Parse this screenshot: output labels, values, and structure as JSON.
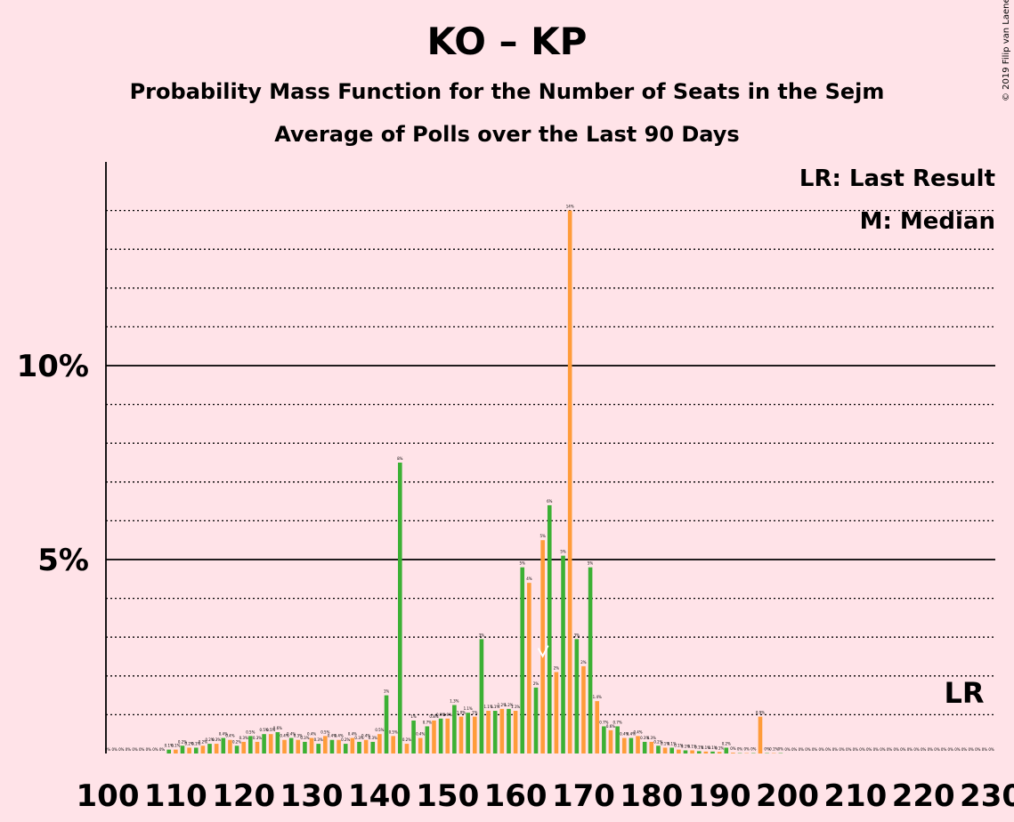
{
  "header": {
    "title": "KO – KP",
    "subtitle": "Probability Mass Function for the Number of Seats in the Sejm",
    "subtitle2": "Average of Polls over the Last 90 Days",
    "copyright": "© 2019 Filip van Laenen"
  },
  "legend": {
    "lr": "LR: Last Result",
    "m": "M: Median"
  },
  "colors": {
    "background": "#FFE3E8",
    "green": "#3CB034",
    "orange": "#FF9C3A",
    "text": "#000000"
  },
  "chart_data": {
    "type": "bar",
    "ylim": [
      0,
      15
    ],
    "y_ticks": [
      {
        "value": 5,
        "label": "5%"
      },
      {
        "value": 10,
        "label": "10%"
      }
    ],
    "x_ticks": [
      100,
      110,
      120,
      130,
      140,
      150,
      160,
      170,
      180,
      190,
      200,
      210,
      220,
      230
    ],
    "last_result_seat": 226,
    "last_result_label": "LR",
    "median_seat": 164,
    "median_label": "M",
    "bars": [
      {
        "seat": 100,
        "value": 0,
        "label": "0%"
      },
      {
        "seat": 101,
        "value": 0,
        "label": "0%"
      },
      {
        "seat": 102,
        "value": 0,
        "label": "0%"
      },
      {
        "seat": 103,
        "value": 0,
        "label": "0%"
      },
      {
        "seat": 104,
        "value": 0,
        "label": "0%"
      },
      {
        "seat": 105,
        "value": 0,
        "label": "0%"
      },
      {
        "seat": 106,
        "value": 0,
        "label": "0%"
      },
      {
        "seat": 107,
        "value": 0,
        "label": "0%"
      },
      {
        "seat": 108,
        "value": 0,
        "label": "0%"
      },
      {
        "seat": 109,
        "value": 0.1,
        "label": "0.1%"
      },
      {
        "seat": 110,
        "value": 0.1,
        "label": "0.1%"
      },
      {
        "seat": 111,
        "value": 0.2,
        "label": "0.2%"
      },
      {
        "seat": 112,
        "value": 0.15,
        "label": "0.2%"
      },
      {
        "seat": 113,
        "value": 0.15,
        "label": "0.1%"
      },
      {
        "seat": 114,
        "value": 0.2,
        "label": "0.2%"
      },
      {
        "seat": 115,
        "value": 0.25,
        "label": "0.2%"
      },
      {
        "seat": 116,
        "value": 0.25,
        "label": "0.3%"
      },
      {
        "seat": 117,
        "value": 0.4,
        "label": "0.4%"
      },
      {
        "seat": 118,
        "value": 0.35,
        "label": "0.4%"
      },
      {
        "seat": 119,
        "value": 0.2,
        "label": "0.2%"
      },
      {
        "seat": 120,
        "value": 0.3,
        "label": "0.3%"
      },
      {
        "seat": 121,
        "value": 0.45,
        "label": "0.5%"
      },
      {
        "seat": 122,
        "value": 0.3,
        "label": "0.3%"
      },
      {
        "seat": 123,
        "value": 0.5,
        "label": "0.5%"
      },
      {
        "seat": 124,
        "value": 0.5,
        "label": "0.5%"
      },
      {
        "seat": 125,
        "value": 0.55,
        "label": "0.6%"
      },
      {
        "seat": 126,
        "value": 0.35,
        "label": "0.4%"
      },
      {
        "seat": 127,
        "value": 0.4,
        "label": "0.4%"
      },
      {
        "seat": 128,
        "value": 0.35,
        "label": "0.3%"
      },
      {
        "seat": 129,
        "value": 0.3,
        "label": "0.3%"
      },
      {
        "seat": 130,
        "value": 0.4,
        "label": "0.4%"
      },
      {
        "seat": 131,
        "value": 0.25,
        "label": "0.3%"
      },
      {
        "seat": 132,
        "value": 0.45,
        "label": "0.5%"
      },
      {
        "seat": 133,
        "value": 0.35,
        "label": "0.4%"
      },
      {
        "seat": 134,
        "value": 0.35,
        "label": "0.4%"
      },
      {
        "seat": 135,
        "value": 0.25,
        "label": "0.2%"
      },
      {
        "seat": 136,
        "value": 0.4,
        "label": "0.4%"
      },
      {
        "seat": 137,
        "value": 0.3,
        "label": "0.3%"
      },
      {
        "seat": 138,
        "value": 0.35,
        "label": "0.4%"
      },
      {
        "seat": 139,
        "value": 0.3,
        "label": "0.3%"
      },
      {
        "seat": 140,
        "value": 0.5,
        "label": "0.5%"
      },
      {
        "seat": 141,
        "value": 1.5,
        "label": "1%"
      },
      {
        "seat": 142,
        "value": 0.45,
        "label": "0.5%"
      },
      {
        "seat": 143,
        "value": 7.5,
        "label": "8%"
      },
      {
        "seat": 144,
        "value": 0.25,
        "label": "0.2%"
      },
      {
        "seat": 145,
        "value": 0.85,
        "label": "1%"
      },
      {
        "seat": 146,
        "value": 0.4,
        "label": "0.4%"
      },
      {
        "seat": 147,
        "value": 0.7,
        "label": "0.7%"
      },
      {
        "seat": 148,
        "value": 0.85,
        "label": "0.8%"
      },
      {
        "seat": 149,
        "value": 0.9,
        "label": "0.9%"
      },
      {
        "seat": 150,
        "value": 0.9,
        "label": "0.9%"
      },
      {
        "seat": 151,
        "value": 1.25,
        "label": "1.3%"
      },
      {
        "seat": 152,
        "value": 0.95,
        "label": "1.0%"
      },
      {
        "seat": 153,
        "value": 1.05,
        "label": "1.1%"
      },
      {
        "seat": 154,
        "value": 0.95,
        "label": "1%"
      },
      {
        "seat": 155,
        "value": 2.95,
        "label": "3%"
      },
      {
        "seat": 156,
        "value": 1.1,
        "label": "1.1%"
      },
      {
        "seat": 157,
        "value": 1.1,
        "label": "1.1%"
      },
      {
        "seat": 158,
        "value": 1.15,
        "label": "1.2%"
      },
      {
        "seat": 159,
        "value": 1.15,
        "label": "1.2%"
      },
      {
        "seat": 160,
        "value": 1.1,
        "label": "1.1%"
      },
      {
        "seat": 161,
        "value": 4.8,
        "label": "5%"
      },
      {
        "seat": 162,
        "value": 4.4,
        "label": "4%"
      },
      {
        "seat": 163,
        "value": 1.7,
        "label": "2%"
      },
      {
        "seat": 164,
        "value": 5.5,
        "label": "5%"
      },
      {
        "seat": 165,
        "value": 6.4,
        "label": "6%"
      },
      {
        "seat": 166,
        "value": 2.1,
        "label": "2%"
      },
      {
        "seat": 167,
        "value": 5.1,
        "label": "5%"
      },
      {
        "seat": 168,
        "value": 14.0,
        "label": "14%"
      },
      {
        "seat": 169,
        "value": 2.95,
        "label": "3%"
      },
      {
        "seat": 170,
        "value": 2.25,
        "label": "2%"
      },
      {
        "seat": 171,
        "value": 4.8,
        "label": "5%"
      },
      {
        "seat": 172,
        "value": 1.35,
        "label": "1.4%"
      },
      {
        "seat": 173,
        "value": 0.7,
        "label": "0.7%"
      },
      {
        "seat": 174,
        "value": 0.6,
        "label": "0.6%"
      },
      {
        "seat": 175,
        "value": 0.7,
        "label": "0.7%"
      },
      {
        "seat": 176,
        "value": 0.4,
        "label": "0.4%"
      },
      {
        "seat": 177,
        "value": 0.4,
        "label": "0.4%"
      },
      {
        "seat": 178,
        "value": 0.45,
        "label": "0.4%"
      },
      {
        "seat": 179,
        "value": 0.3,
        "label": "0.3%"
      },
      {
        "seat": 180,
        "value": 0.3,
        "label": "0.3%"
      },
      {
        "seat": 181,
        "value": 0.2,
        "label": "0.2%"
      },
      {
        "seat": 182,
        "value": 0.15,
        "label": "0.1%"
      },
      {
        "seat": 183,
        "value": 0.15,
        "label": "0.1%"
      },
      {
        "seat": 184,
        "value": 0.1,
        "label": "0.1%"
      },
      {
        "seat": 185,
        "value": 0.08,
        "label": "0.1%"
      },
      {
        "seat": 186,
        "value": 0.08,
        "label": "0.1%"
      },
      {
        "seat": 187,
        "value": 0.06,
        "label": "0.1%"
      },
      {
        "seat": 188,
        "value": 0.05,
        "label": "0.1%"
      },
      {
        "seat": 189,
        "value": 0.05,
        "label": "0.1%"
      },
      {
        "seat": 190,
        "value": 0.04,
        "label": "0.1%"
      },
      {
        "seat": 191,
        "value": 0.15,
        "label": "0.2%"
      },
      {
        "seat": 192,
        "value": 0.02,
        "label": "0%"
      },
      {
        "seat": 193,
        "value": 0.01,
        "label": "0%"
      },
      {
        "seat": 194,
        "value": 0.01,
        "label": "0%"
      },
      {
        "seat": 195,
        "value": 0.01,
        "label": "0%"
      },
      {
        "seat": 196,
        "value": 0.95,
        "label": "0.9%"
      },
      {
        "seat": 197,
        "value": 0.01,
        "label": "0%"
      },
      {
        "seat": 198,
        "value": 0.01,
        "label": "0.1%"
      },
      {
        "seat": 199,
        "value": 0.01,
        "label": "0%"
      },
      {
        "seat": 200,
        "value": 0,
        "label": "0%"
      },
      {
        "seat": 201,
        "value": 0,
        "label": "0%"
      },
      {
        "seat": 202,
        "value": 0,
        "label": "0%"
      },
      {
        "seat": 203,
        "value": 0,
        "label": "0%"
      },
      {
        "seat": 204,
        "value": 0,
        "label": "0%"
      },
      {
        "seat": 205,
        "value": 0,
        "label": "0%"
      },
      {
        "seat": 206,
        "value": 0,
        "label": "0%"
      },
      {
        "seat": 207,
        "value": 0,
        "label": "0%"
      },
      {
        "seat": 208,
        "value": 0,
        "label": "0%"
      },
      {
        "seat": 209,
        "value": 0,
        "label": "0%"
      },
      {
        "seat": 210,
        "value": 0,
        "label": "0%"
      },
      {
        "seat": 211,
        "value": 0,
        "label": "0%"
      },
      {
        "seat": 212,
        "value": 0,
        "label": "0%"
      },
      {
        "seat": 213,
        "value": 0,
        "label": "0%"
      },
      {
        "seat": 214,
        "value": 0,
        "label": "0%"
      },
      {
        "seat": 215,
        "value": 0,
        "label": "0%"
      },
      {
        "seat": 216,
        "value": 0,
        "label": "0%"
      },
      {
        "seat": 217,
        "value": 0,
        "label": "0%"
      },
      {
        "seat": 218,
        "value": 0,
        "label": "0%"
      },
      {
        "seat": 219,
        "value": 0,
        "label": "0%"
      },
      {
        "seat": 220,
        "value": 0,
        "label": "0%"
      },
      {
        "seat": 221,
        "value": 0,
        "label": "0%"
      },
      {
        "seat": 222,
        "value": 0,
        "label": "0%"
      },
      {
        "seat": 223,
        "value": 0,
        "label": "0%"
      },
      {
        "seat": 224,
        "value": 0,
        "label": "0%"
      },
      {
        "seat": 225,
        "value": 0,
        "label": "0%"
      },
      {
        "seat": 226,
        "value": 0,
        "label": "0%"
      },
      {
        "seat": 227,
        "value": 0,
        "label": "0%"
      },
      {
        "seat": 228,
        "value": 0,
        "label": "0%"
      },
      {
        "seat": 229,
        "value": 0,
        "label": "0%"
      },
      {
        "seat": 230,
        "value": 0,
        "label": "0%"
      }
    ]
  }
}
